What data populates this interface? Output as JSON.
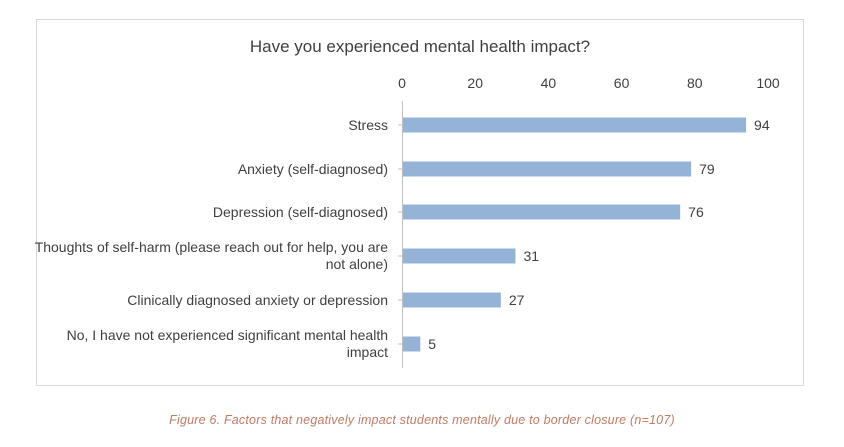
{
  "colors": {
    "bar": "#95b3d7",
    "axis": "#bfbfbf",
    "text": "#404040",
    "caption": "#c27b64",
    "frame": "#d9d9d9"
  },
  "caption": "Figure 6. Factors that negatively impact students mentally due to border closure (n=107)",
  "chart_data": {
    "type": "bar",
    "orientation": "horizontal",
    "title": "Have you experienced mental health impact?",
    "xlabel": "",
    "ylabel": "",
    "xlim": [
      0,
      100
    ],
    "ticks": [
      "0",
      "20",
      "40",
      "60",
      "80",
      "100"
    ],
    "axis_position": "top",
    "grid": false,
    "categories": [
      "Stress",
      "Anxiety (self-diagnosed)",
      "Depression (self-diagnosed)",
      "Thoughts of self-harm (please reach out for help, you are not alone)",
      "Clinically diagnosed anxiety or depression",
      "No, I have not experienced significant mental health impact"
    ],
    "values": [
      94,
      79,
      76,
      31,
      27,
      5
    ],
    "data_labels": [
      "94",
      "79",
      "76",
      "31",
      "27",
      "5"
    ]
  }
}
